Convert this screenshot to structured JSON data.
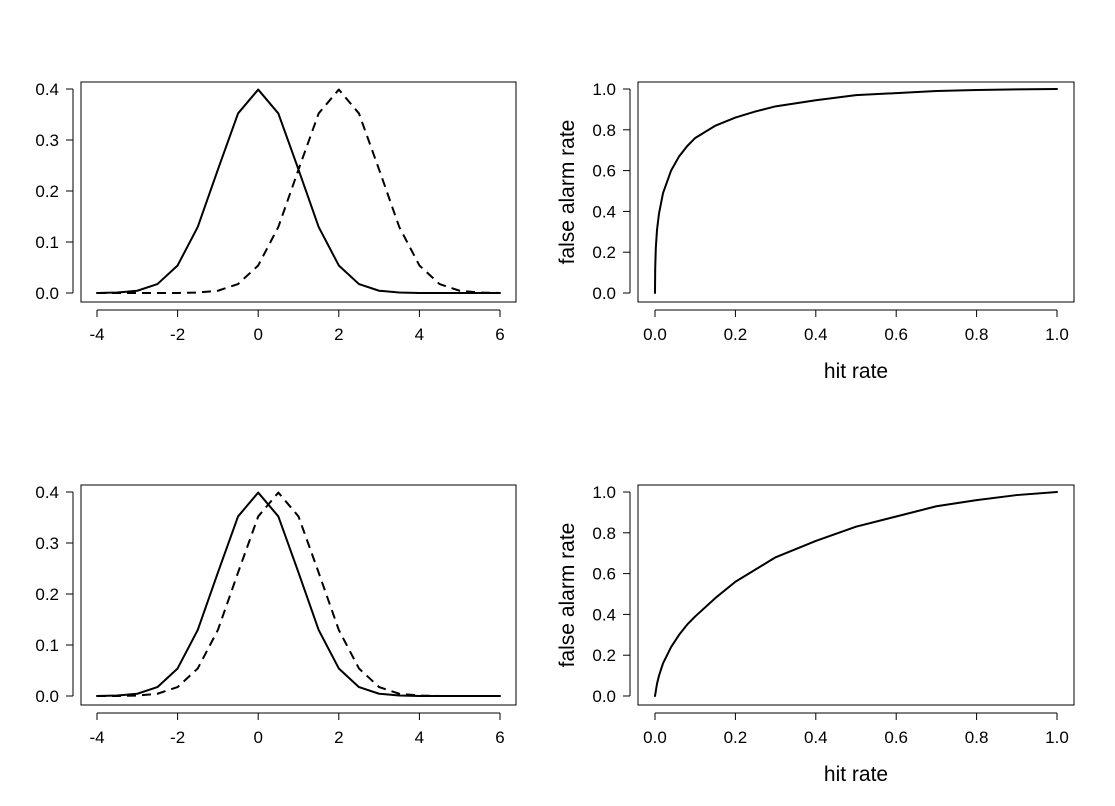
{
  "chart_data": [
    {
      "type": "line",
      "title": "",
      "xlabel": "",
      "ylabel": "",
      "xlim": [
        -4,
        6
      ],
      "ylim": [
        0,
        0.4
      ],
      "xticks": [
        "-4",
        "-2",
        "0",
        "2",
        "4",
        "6"
      ],
      "yticks": [
        "0.0",
        "0.1",
        "0.2",
        "0.3",
        "0.4"
      ],
      "grid": false,
      "series": [
        {
          "style": "solid",
          "x": [
            -4,
            -3.5,
            -3,
            -2.5,
            -2,
            -1.5,
            -1,
            -0.5,
            0,
            0.5,
            1,
            1.5,
            2,
            2.5,
            3,
            3.5,
            4,
            4.5,
            5,
            5.5,
            6
          ],
          "y": [
            0.0001,
            0.0009,
            0.0044,
            0.0175,
            0.054,
            0.1295,
            0.242,
            0.3521,
            0.3989,
            0.3521,
            0.242,
            0.1295,
            0.054,
            0.0175,
            0.0044,
            0.0009,
            0.0001,
            0.0,
            0.0,
            0.0,
            0.0
          ]
        },
        {
          "style": "dashed",
          "x": [
            -4,
            -3.5,
            -3,
            -2.5,
            -2,
            -1.5,
            -1,
            -0.5,
            0,
            0.5,
            1,
            1.5,
            2,
            2.5,
            3,
            3.5,
            4,
            4.5,
            5,
            5.5,
            6
          ],
          "y": [
            0.0,
            0.0,
            0.0,
            0.0,
            0.0001,
            0.0009,
            0.0044,
            0.0175,
            0.054,
            0.1295,
            0.242,
            0.3521,
            0.3989,
            0.3521,
            0.242,
            0.1295,
            0.054,
            0.0175,
            0.0044,
            0.0009,
            0.0001
          ]
        }
      ]
    },
    {
      "type": "line",
      "title": "",
      "xlabel": "hit rate",
      "ylabel": "false alarm rate",
      "xlim": [
        0,
        1
      ],
      "ylim": [
        0,
        1
      ],
      "xticks": [
        "0.0",
        "0.2",
        "0.4",
        "0.6",
        "0.8",
        "1.0"
      ],
      "yticks": [
        "0.0",
        "0.2",
        "0.4",
        "0.6",
        "0.8",
        "1.0"
      ],
      "grid": false,
      "series": [
        {
          "style": "solid",
          "x": [
            0,
            0.0005,
            0.002,
            0.005,
            0.01,
            0.02,
            0.04,
            0.06,
            0.08,
            0.1,
            0.15,
            0.2,
            0.25,
            0.3,
            0.4,
            0.5,
            0.6,
            0.7,
            0.8,
            0.9,
            1
          ],
          "y": [
            0,
            0.12,
            0.22,
            0.31,
            0.39,
            0.49,
            0.6,
            0.67,
            0.72,
            0.76,
            0.82,
            0.86,
            0.89,
            0.915,
            0.945,
            0.97,
            0.98,
            0.99,
            0.995,
            0.998,
            1
          ]
        }
      ]
    },
    {
      "type": "line",
      "title": "",
      "xlabel": "",
      "ylabel": "",
      "xlim": [
        -4,
        6
      ],
      "ylim": [
        0,
        0.4
      ],
      "xticks": [
        "-4",
        "-2",
        "0",
        "2",
        "4",
        "6"
      ],
      "yticks": [
        "0.0",
        "0.1",
        "0.2",
        "0.3",
        "0.4"
      ],
      "grid": false,
      "series": [
        {
          "style": "solid",
          "x": [
            -4,
            -3.5,
            -3,
            -2.5,
            -2,
            -1.5,
            -1,
            -0.5,
            0,
            0.5,
            1,
            1.5,
            2,
            2.5,
            3,
            3.5,
            4,
            4.5,
            5,
            5.5,
            6
          ],
          "y": [
            0.0001,
            0.0009,
            0.0044,
            0.0175,
            0.054,
            0.1295,
            0.242,
            0.3521,
            0.3989,
            0.3521,
            0.242,
            0.1295,
            0.054,
            0.0175,
            0.0044,
            0.0009,
            0.0001,
            0.0,
            0.0,
            0.0,
            0.0
          ]
        },
        {
          "style": "dashed",
          "x": [
            -4,
            -3.5,
            -3,
            -2.5,
            -2,
            -1.5,
            -1,
            -0.5,
            0,
            0.5,
            1,
            1.5,
            2,
            2.5,
            3,
            3.5,
            4,
            4.5,
            5,
            5.5,
            6
          ],
          "y": [
            0.0,
            0.0001,
            0.0009,
            0.0044,
            0.0175,
            0.054,
            0.1295,
            0.242,
            0.3521,
            0.3989,
            0.3521,
            0.242,
            0.1295,
            0.054,
            0.0175,
            0.0044,
            0.0009,
            0.0001,
            0.0,
            0.0,
            0.0
          ]
        }
      ]
    },
    {
      "type": "line",
      "title": "",
      "xlabel": "hit rate",
      "ylabel": "false alarm rate",
      "xlim": [
        0,
        1
      ],
      "ylim": [
        0,
        1
      ],
      "xticks": [
        "0.0",
        "0.2",
        "0.4",
        "0.6",
        "0.8",
        "1.0"
      ],
      "yticks": [
        "0.0",
        "0.2",
        "0.4",
        "0.6",
        "0.8",
        "1.0"
      ],
      "grid": false,
      "series": [
        {
          "style": "solid",
          "x": [
            0,
            0.005,
            0.01,
            0.02,
            0.04,
            0.06,
            0.08,
            0.1,
            0.15,
            0.2,
            0.25,
            0.3,
            0.4,
            0.5,
            0.6,
            0.7,
            0.8,
            0.9,
            1
          ],
          "y": [
            0,
            0.06,
            0.1,
            0.16,
            0.24,
            0.3,
            0.35,
            0.39,
            0.48,
            0.56,
            0.62,
            0.68,
            0.76,
            0.83,
            0.88,
            0.93,
            0.96,
            0.985,
            1
          ]
        }
      ]
    }
  ]
}
